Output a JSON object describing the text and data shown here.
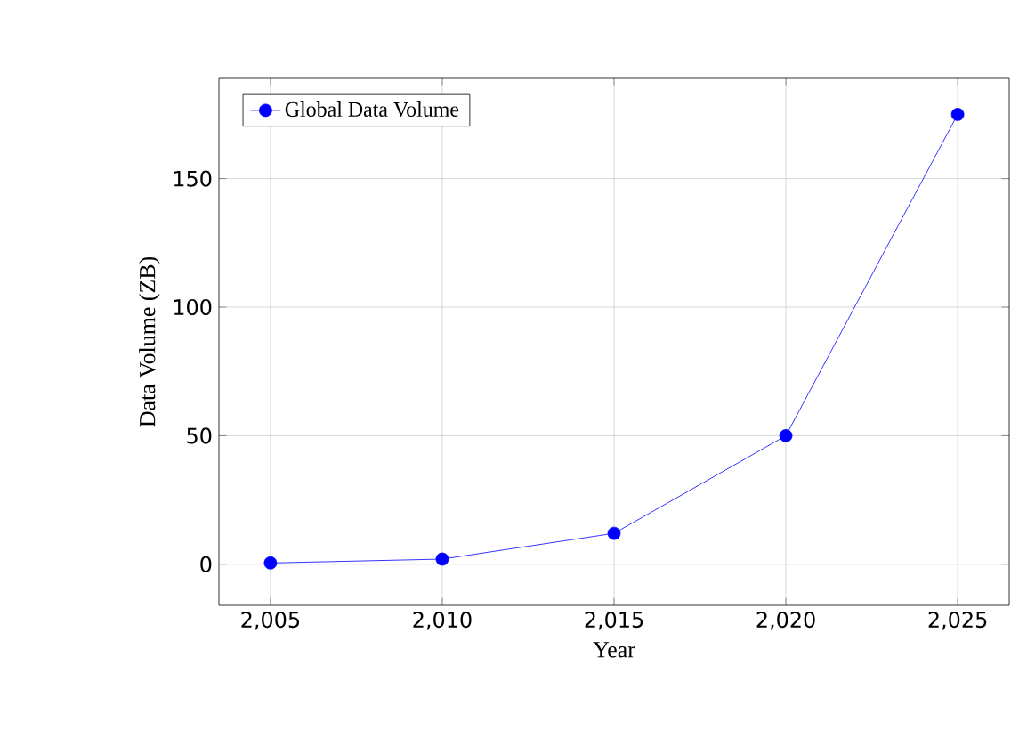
{
  "chart_data": {
    "type": "line",
    "xlabel": "Year",
    "ylabel": "Data Volume (ZB)",
    "x": [
      2005,
      2010,
      2015,
      2020,
      2025
    ],
    "series": [
      {
        "name": "Global Data Volume",
        "color": "#0000ff",
        "values": [
          0.5,
          2,
          12,
          50,
          175
        ]
      }
    ],
    "xlim": [
      2003.5,
      2026.5
    ],
    "ylim": [
      -16,
      189
    ],
    "xticks": [
      {
        "value": 2005,
        "label": "2,005"
      },
      {
        "value": 2010,
        "label": "2,010"
      },
      {
        "value": 2015,
        "label": "2,015"
      },
      {
        "value": 2020,
        "label": "2,020"
      },
      {
        "value": 2025,
        "label": "2,025"
      }
    ],
    "yticks": [
      0,
      50,
      100,
      150
    ],
    "grid": true,
    "legend": "top left",
    "marker": "circle",
    "line_style": "solid"
  }
}
